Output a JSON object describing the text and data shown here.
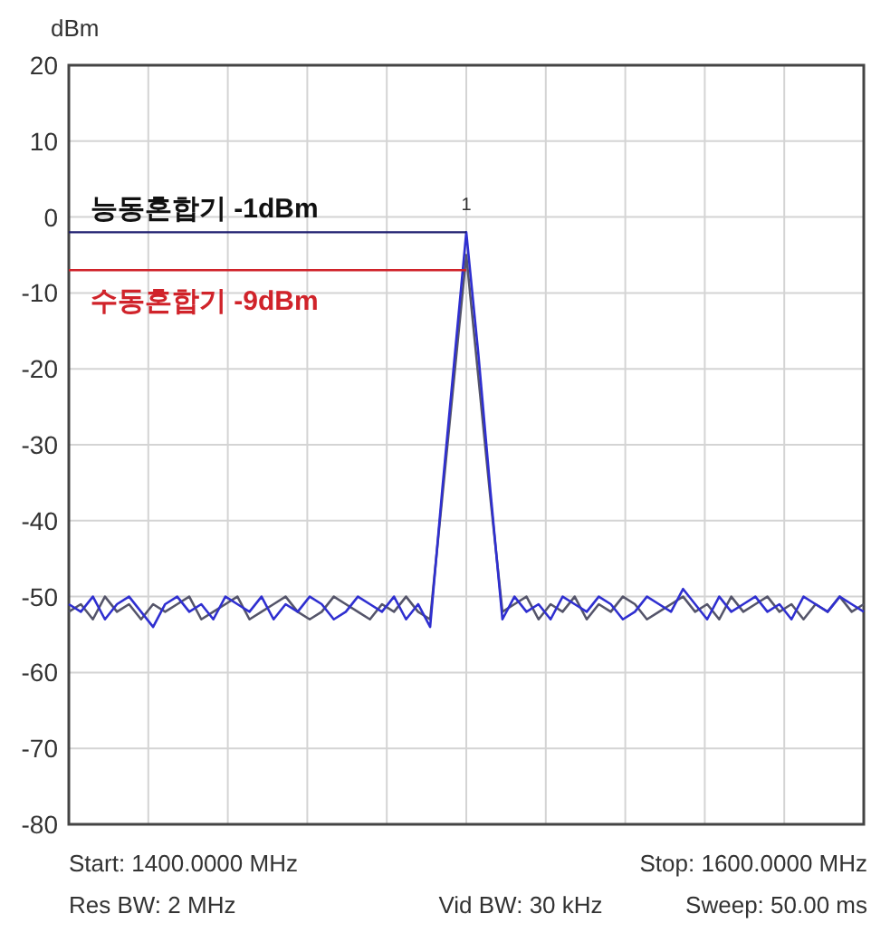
{
  "chart_data": {
    "type": "line",
    "ylabel": "dBm",
    "categories": [
      null,
      null,
      null,
      null,
      null,
      null,
      null,
      null,
      null,
      null,
      null,
      null,
      null,
      null,
      null,
      null,
      null,
      null,
      null,
      null,
      null,
      null,
      null,
      null,
      null,
      null,
      null,
      null,
      null,
      null,
      null,
      null,
      null,
      null,
      null,
      null,
      null,
      null,
      null,
      null,
      null,
      null,
      null,
      null,
      null,
      null,
      null,
      null,
      null,
      null,
      null,
      null,
      null,
      null,
      null,
      null,
      null,
      null,
      null,
      null,
      null,
      null,
      null,
      null,
      null,
      null,
      null
    ],
    "series": [
      {
        "color": "#2f2fd0",
        "values": [
          -51,
          -52,
          -50,
          -53,
          -51,
          -50,
          -52,
          -54,
          -51,
          -50,
          -52,
          -51,
          -53,
          -50,
          -51,
          -52,
          -50,
          -53,
          -51,
          -52,
          -50,
          -51,
          -53,
          -52,
          -50,
          -51,
          -52,
          -50,
          -53,
          -51,
          -54,
          -36,
          -19,
          -2,
          -18,
          -36,
          -53,
          -50,
          -52,
          -51,
          -53,
          -50,
          -51,
          -52,
          -50,
          -51,
          -53,
          -52,
          -50,
          -51,
          -52,
          -49,
          -51,
          -53,
          -50,
          -52,
          -51,
          -50,
          -52,
          -51,
          -53,
          -50,
          -51,
          -52,
          -50,
          -51,
          -52
        ]
      },
      {
        "color": "#55556a",
        "values": [
          -52,
          -51,
          -53,
          -50,
          -52,
          -51,
          -53,
          -51,
          -52,
          -51,
          -50,
          -53,
          -52,
          -51,
          -50,
          -53,
          -52,
          -51,
          -50,
          -52,
          -53,
          -52,
          -50,
          -51,
          -52,
          -53,
          -51,
          -52,
          -50,
          -52,
          -53,
          -37,
          -21,
          -5,
          -21,
          -37,
          -52,
          -51,
          -50,
          -53,
          -51,
          -52,
          -50,
          -53,
          -51,
          -52,
          -50,
          -51,
          -53,
          -52,
          -51,
          -50,
          -52,
          -51,
          -53,
          -50,
          -52,
          -51,
          -50,
          -52,
          -51,
          -53,
          -51,
          -52,
          -50,
          -52,
          -51
        ]
      }
    ],
    "ylim": [
      -80,
      20
    ],
    "yticks": [
      {
        "value": -80,
        "label": "-80"
      },
      {
        "value": -70,
        "label": "-70"
      },
      {
        "value": -60,
        "label": "-60"
      },
      {
        "value": -50,
        "label": "-50"
      },
      {
        "value": -40,
        "label": "-40"
      },
      {
        "value": -30,
        "label": "-30"
      },
      {
        "value": -20,
        "label": "-20"
      },
      {
        "value": -10,
        "label": "-10"
      },
      {
        "value": 0,
        "label": "0"
      },
      {
        "value": 10,
        "label": "10"
      },
      {
        "value": 20,
        "label": "20"
      }
    ],
    "tick_labels": "y",
    "grid": true,
    "ref_lines": [
      {
        "axis": "y",
        "value": -2,
        "label": "능동혼합기 -1dBm",
        "color": "#1c1c6e"
      },
      {
        "axis": "y",
        "value": -7,
        "label": "수동혼합기 -9dBm",
        "color": "#d0232a"
      }
    ],
    "annotations": [
      "1",
      "Start: 1400.0000 MHz",
      "Stop: 1600.0000 MHz",
      "Res BW: 2 MHz",
      "Vid BW: 30 kHz",
      "Sweep: 50.00 ms"
    ]
  }
}
